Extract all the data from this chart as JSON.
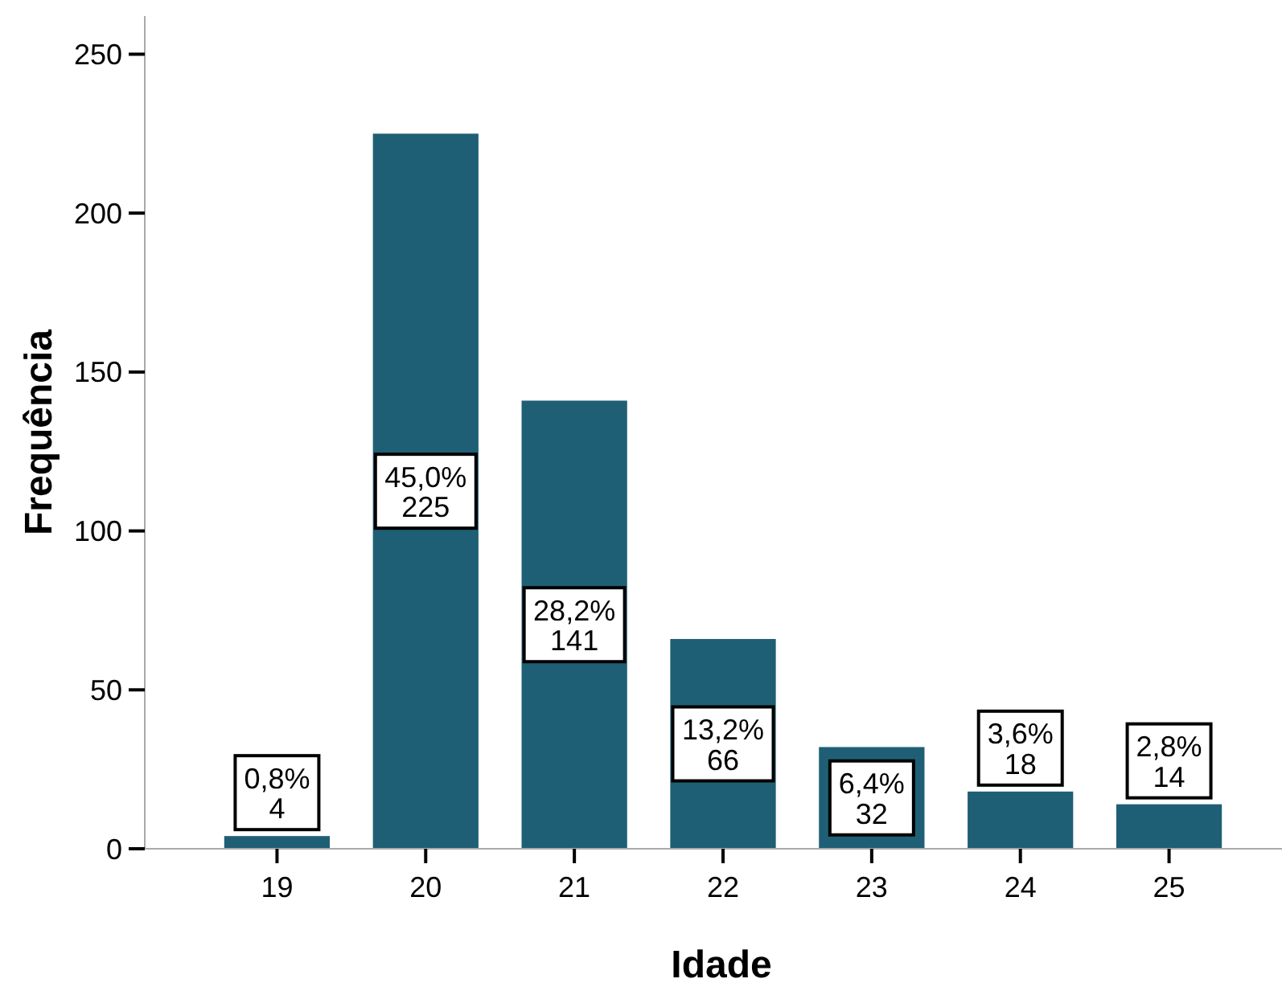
{
  "chart_data": {
    "type": "bar",
    "xlabel": "Idade",
    "ylabel": "Frequência",
    "categories": [
      "19",
      "20",
      "21",
      "22",
      "23",
      "24",
      "25"
    ],
    "values": [
      4,
      225,
      141,
      66,
      32,
      18,
      14
    ],
    "value_labels": [
      "0,8%\n4",
      "45,0%\n225",
      "28,2%\n141",
      "13,2%\n66",
      "6,4%\n32",
      "3,6%\n18",
      "2,8%\n14"
    ],
    "color": "#1f5f75",
    "ylim": [
      0,
      262
    ],
    "yticks": [
      0,
      50,
      100,
      150,
      200,
      250
    ],
    "grid": false
  }
}
